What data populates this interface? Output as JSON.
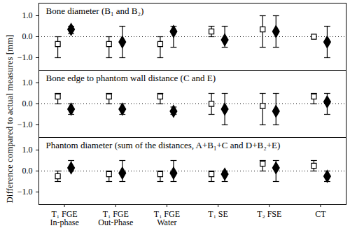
{
  "chart_data": [
    {
      "type": "scatter",
      "title": "Bone diameter (B₁ and B₂)",
      "categories": [
        "T₁ FGE\nIn-phase",
        "T₁ FGE\nOut-Phase",
        "T₁ FGE\nWater",
        "T₁ SE",
        "T₂ FSE",
        "CT"
      ],
      "ylim": [
        -1.6,
        1.6
      ],
      "yticks": [
        -1,
        0,
        1
      ],
      "reference_y": 0,
      "tick_labels": "y",
      "series": [
        {
          "marker": "square",
          "color": "#000000",
          "values": [
            -0.35,
            -0.35,
            -0.35,
            0.25,
            0.35,
            0.0
          ],
          "error_low": [
            -1.0,
            -1.0,
            -1.0,
            0.0,
            -0.5,
            0.0
          ],
          "error_high": [
            0.0,
            0.0,
            0.0,
            0.5,
            1.0,
            0.0
          ]
        },
        {
          "marker": "diamond",
          "color": "#000000",
          "values": [
            0.35,
            -0.25,
            0.25,
            -0.15,
            0.25,
            -0.25
          ],
          "error_low": [
            0.15,
            -1.0,
            -0.5,
            -0.5,
            -0.5,
            -1.0
          ],
          "error_high": [
            0.5,
            0.5,
            0.5,
            0.5,
            1.0,
            0.5
          ]
        }
      ]
    },
    {
      "type": "scatter",
      "title": "Bone edge to phantom wall distance (C and E)",
      "ylabel": "Difference compared to actual measures [mm]",
      "categories": [
        "T₁ FGE\nIn-phase",
        "T₁ FGE\nOut-Phase",
        "T₁ FGE\nWater",
        "T₁ SE",
        "T₂ FSE",
        "CT"
      ],
      "ylim": [
        -1.6,
        1.6
      ],
      "yticks": [
        -1,
        0,
        1
      ],
      "reference_y": 0,
      "tick_labels": "y",
      "series": [
        {
          "marker": "square",
          "color": "#000000",
          "values": [
            0.35,
            0.35,
            0.35,
            0.0,
            -0.1,
            0.35
          ],
          "error_low": [
            0.0,
            0.0,
            0.0,
            -0.5,
            -1.0,
            0.0
          ],
          "error_high": [
            0.5,
            0.5,
            0.5,
            0.5,
            0.5,
            0.5
          ]
        },
        {
          "marker": "diamond",
          "color": "#000000",
          "values": [
            -0.25,
            -0.25,
            -0.35,
            -0.25,
            -0.35,
            0.1
          ],
          "error_low": [
            -0.5,
            -0.5,
            -0.5,
            -1.0,
            -1.0,
            -0.5
          ],
          "error_high": [
            0.0,
            0.0,
            -0.15,
            0.5,
            0.5,
            0.5
          ]
        }
      ]
    },
    {
      "type": "scatter",
      "title": "Phantom diameter (sum of the distances, A+B₁+C and D+B₂+E)",
      "categories": [
        "T₁ FGE\nIn-phase",
        "T₁ FGE\nOut-Phase",
        "T₁ FGE\nWater",
        "T₁ SE",
        "T₂ FSE",
        "CT"
      ],
      "ylim": [
        -1.6,
        1.6
      ],
      "yticks": [
        -1,
        0,
        1
      ],
      "reference_y": 0,
      "series": [
        {
          "marker": "square",
          "color": "#000000",
          "values": [
            -0.25,
            -0.15,
            -0.15,
            -0.15,
            0.35,
            0.25
          ],
          "error_low": [
            -0.5,
            -0.5,
            -0.5,
            -0.5,
            0.0,
            0.0
          ],
          "error_high": [
            0.0,
            0.0,
            0.0,
            0.0,
            0.5,
            0.5
          ]
        },
        {
          "marker": "diamond",
          "color": "#000000",
          "values": [
            0.15,
            -0.1,
            -0.1,
            -0.15,
            0.15,
            -0.25
          ],
          "error_low": [
            0.0,
            -0.5,
            -0.5,
            -0.5,
            -0.5,
            -0.5
          ],
          "error_high": [
            0.5,
            0.5,
            0.5,
            0.0,
            0.5,
            0.0
          ]
        }
      ]
    }
  ]
}
